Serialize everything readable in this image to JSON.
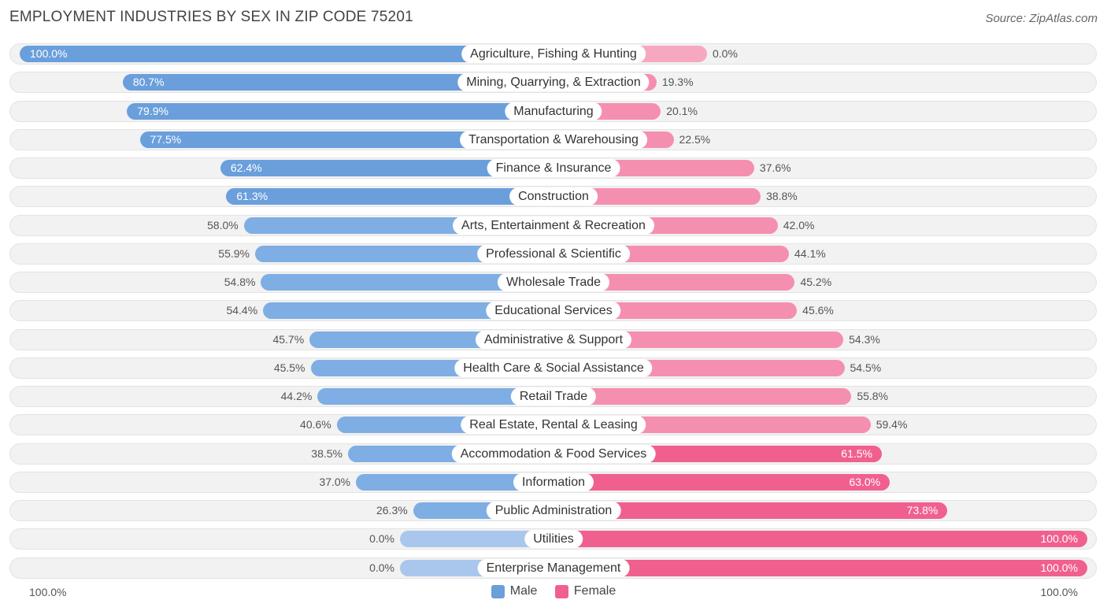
{
  "colors": {
    "male": "#6a9fdc",
    "male_light": "#a9c7ec",
    "female": "#f0608f",
    "female_light": "#f7a8c1"
  },
  "chart_data": {
    "type": "bar",
    "orientation": "horizontal-diverging",
    "title": "EMPLOYMENT INDUSTRIES BY SEX IN ZIP CODE 75201",
    "source": "Source: ZipAtlas.com",
    "categories": [
      "Agriculture, Fishing & Hunting",
      "Mining, Quarrying, & Extraction",
      "Manufacturing",
      "Transportation & Warehousing",
      "Finance & Insurance",
      "Construction",
      "Arts, Entertainment & Recreation",
      "Professional & Scientific",
      "Wholesale Trade",
      "Educational Services",
      "Administrative & Support",
      "Health Care & Social Assistance",
      "Retail Trade",
      "Real Estate, Rental & Leasing",
      "Accommodation & Food Services",
      "Information",
      "Public Administration",
      "Utilities",
      "Enterprise Management"
    ],
    "series": [
      {
        "name": "Male",
        "values": [
          100.0,
          80.7,
          79.9,
          77.5,
          62.4,
          61.3,
          58.0,
          55.9,
          54.8,
          54.4,
          45.7,
          45.5,
          44.2,
          40.6,
          38.5,
          37.0,
          26.3,
          0.0,
          0.0
        ],
        "labels": [
          "100.0%",
          "80.7%",
          "79.9%",
          "77.5%",
          "62.4%",
          "61.3%",
          "58.0%",
          "55.9%",
          "54.8%",
          "54.4%",
          "45.7%",
          "45.5%",
          "44.2%",
          "40.6%",
          "38.5%",
          "37.0%",
          "26.3%",
          "0.0%",
          "0.0%"
        ]
      },
      {
        "name": "Female",
        "values": [
          0.0,
          19.3,
          20.1,
          22.5,
          37.6,
          38.8,
          42.0,
          44.1,
          45.2,
          45.6,
          54.3,
          54.5,
          55.8,
          59.4,
          61.5,
          63.0,
          73.8,
          100.0,
          100.0
        ],
        "labels": [
          "0.0%",
          "19.3%",
          "20.1%",
          "22.5%",
          "37.6%",
          "38.8%",
          "42.0%",
          "44.1%",
          "45.2%",
          "45.6%",
          "54.3%",
          "54.5%",
          "55.8%",
          "59.4%",
          "61.5%",
          "63.0%",
          "73.8%",
          "100.0%",
          "100.0%"
        ]
      }
    ],
    "axis": {
      "left_label": "100.0%",
      "right_label": "100.0%",
      "range": [
        0,
        100
      ]
    },
    "legend": [
      "Male",
      "Female"
    ],
    "legend_position": "bottom-center"
  }
}
